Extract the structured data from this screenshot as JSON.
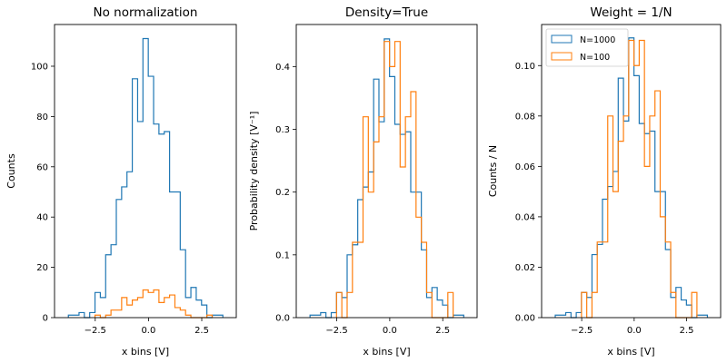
{
  "colors": {
    "n1000": "#1f77b4",
    "n100": "#ff7f0e"
  },
  "chart_data": [
    {
      "type": "histogram-step",
      "title": "No normalization",
      "xlabel": "x bins [V]",
      "ylabel": "Counts",
      "xlim": [
        -4.41,
        4.12
      ],
      "ylim": [
        0,
        116.6
      ],
      "xticks": [
        -2.5,
        0.0,
        2.5
      ],
      "xtick_labels": [
        "−2.5",
        "0.0",
        "2.5"
      ],
      "yticks": [
        0,
        20,
        40,
        60,
        80,
        100
      ],
      "ytick_labels": [
        "0",
        "20",
        "40",
        "60",
        "80",
        "100"
      ],
      "grid": false,
      "series": [
        {
          "name": "N=1000",
          "bin_edges": [
            -3.76,
            -3.51,
            -3.26,
            -3.01,
            -2.76,
            -2.51,
            -2.26,
            -2.01,
            -1.76,
            -1.51,
            -1.26,
            -1.01,
            -0.76,
            -0.51,
            -0.26,
            -0.01,
            0.24,
            0.49,
            0.74,
            0.99,
            1.24,
            1.49,
            1.74,
            1.99,
            2.24,
            2.49,
            2.74,
            2.99,
            3.24,
            3.49
          ],
          "values": [
            1,
            1,
            2,
            0,
            2,
            10,
            8,
            25,
            29,
            47,
            52,
            58,
            95,
            78,
            111,
            96,
            77,
            73,
            74,
            50,
            50,
            27,
            8,
            12,
            7,
            5,
            0,
            1,
            1
          ]
        },
        {
          "name": "N=100",
          "bin_edges": [
            -2.51,
            -2.26,
            -2.01,
            -1.76,
            -1.51,
            -1.26,
            -1.01,
            -0.76,
            -0.51,
            -0.26,
            -0.01,
            0.24,
            0.49,
            0.74,
            0.99,
            1.24,
            1.49,
            1.74,
            1.99,
            2.24,
            2.49,
            2.74,
            2.99
          ],
          "values": [
            1,
            0,
            1,
            3,
            3,
            8,
            5,
            7,
            8,
            11,
            10,
            11,
            6,
            8,
            9,
            4,
            3,
            1,
            0,
            0,
            0,
            1
          ]
        }
      ]
    },
    {
      "type": "histogram-step",
      "title": "Density=True",
      "xlabel": "x bins [V]",
      "ylabel": "Probability density [V⁻¹]",
      "xlim": [
        -4.41,
        4.12
      ],
      "ylim": [
        0,
        0.467
      ],
      "xticks": [
        -2.5,
        0.0,
        2.5
      ],
      "xtick_labels": [
        "−2.5",
        "0.0",
        "2.5"
      ],
      "yticks": [
        0,
        0.1,
        0.2,
        0.3,
        0.4
      ],
      "ytick_labels": [
        "0.0",
        "0.1",
        "0.2",
        "0.3",
        "0.4"
      ],
      "grid": false,
      "series": [
        {
          "name": "N=1000",
          "bin_edges": [
            -3.76,
            -3.51,
            -3.26,
            -3.01,
            -2.76,
            -2.51,
            -2.26,
            -2.01,
            -1.76,
            -1.51,
            -1.26,
            -1.01,
            -0.76,
            -0.51,
            -0.26,
            -0.01,
            0.24,
            0.49,
            0.74,
            0.99,
            1.24,
            1.49,
            1.74,
            1.99,
            2.24,
            2.49,
            2.74,
            2.99,
            3.24,
            3.49
          ],
          "values": [
            0.004,
            0.004,
            0.008,
            0,
            0.008,
            0.04,
            0.032,
            0.1,
            0.116,
            0.188,
            0.208,
            0.232,
            0.38,
            0.312,
            0.444,
            0.384,
            0.308,
            0.292,
            0.296,
            0.2,
            0.2,
            0.108,
            0.032,
            0.048,
            0.028,
            0.02,
            0,
            0.004,
            0.004
          ]
        },
        {
          "name": "N=100",
          "bin_edges": [
            -2.51,
            -2.26,
            -2.01,
            -1.76,
            -1.51,
            -1.26,
            -1.01,
            -0.76,
            -0.51,
            -0.26,
            -0.01,
            0.24,
            0.49,
            0.74,
            0.99,
            1.24,
            1.49,
            1.74,
            1.99,
            2.24,
            2.49,
            2.74,
            2.99
          ],
          "values": [
            0.04,
            0,
            0.04,
            0.12,
            0.12,
            0.32,
            0.2,
            0.28,
            0.32,
            0.44,
            0.4,
            0.44,
            0.24,
            0.32,
            0.36,
            0.16,
            0.12,
            0.04,
            0,
            0,
            0,
            0.04
          ]
        }
      ]
    },
    {
      "type": "histogram-step",
      "title": "Weight = 1/N",
      "xlabel": "x bins [V]",
      "ylabel": "Counts / N",
      "xlim": [
        -4.41,
        4.12
      ],
      "ylim": [
        0,
        0.1163
      ],
      "xticks": [
        -2.5,
        0.0,
        2.5
      ],
      "xtick_labels": [
        "−2.5",
        "0.0",
        "2.5"
      ],
      "yticks": [
        0,
        0.02,
        0.04,
        0.06,
        0.08,
        0.1
      ],
      "ytick_labels": [
        "0.00",
        "0.02",
        "0.04",
        "0.06",
        "0.08",
        "0.10"
      ],
      "grid": false,
      "legend": {
        "position": "top-left",
        "entries": [
          "N=1000",
          "N=100"
        ]
      },
      "series": [
        {
          "name": "N=1000",
          "bin_edges": [
            -3.76,
            -3.51,
            -3.26,
            -3.01,
            -2.76,
            -2.51,
            -2.26,
            -2.01,
            -1.76,
            -1.51,
            -1.26,
            -1.01,
            -0.76,
            -0.51,
            -0.26,
            -0.01,
            0.24,
            0.49,
            0.74,
            0.99,
            1.24,
            1.49,
            1.74,
            1.99,
            2.24,
            2.49,
            2.74,
            2.99,
            3.24,
            3.49
          ],
          "values": [
            0.001,
            0.001,
            0.002,
            0,
            0.002,
            0.01,
            0.008,
            0.025,
            0.029,
            0.047,
            0.052,
            0.058,
            0.095,
            0.078,
            0.111,
            0.096,
            0.077,
            0.073,
            0.074,
            0.05,
            0.05,
            0.027,
            0.008,
            0.012,
            0.007,
            0.005,
            0,
            0.001,
            0.001
          ]
        },
        {
          "name": "N=100",
          "bin_edges": [
            -2.51,
            -2.26,
            -2.01,
            -1.76,
            -1.51,
            -1.26,
            -1.01,
            -0.76,
            -0.51,
            -0.26,
            -0.01,
            0.24,
            0.49,
            0.74,
            0.99,
            1.24,
            1.49,
            1.74,
            1.99,
            2.24,
            2.49,
            2.74,
            2.99
          ],
          "values": [
            0.01,
            0,
            0.01,
            0.03,
            0.03,
            0.08,
            0.05,
            0.07,
            0.08,
            0.11,
            0.1,
            0.11,
            0.06,
            0.08,
            0.09,
            0.04,
            0.03,
            0.01,
            0,
            0,
            0,
            0.01
          ]
        }
      ]
    }
  ]
}
